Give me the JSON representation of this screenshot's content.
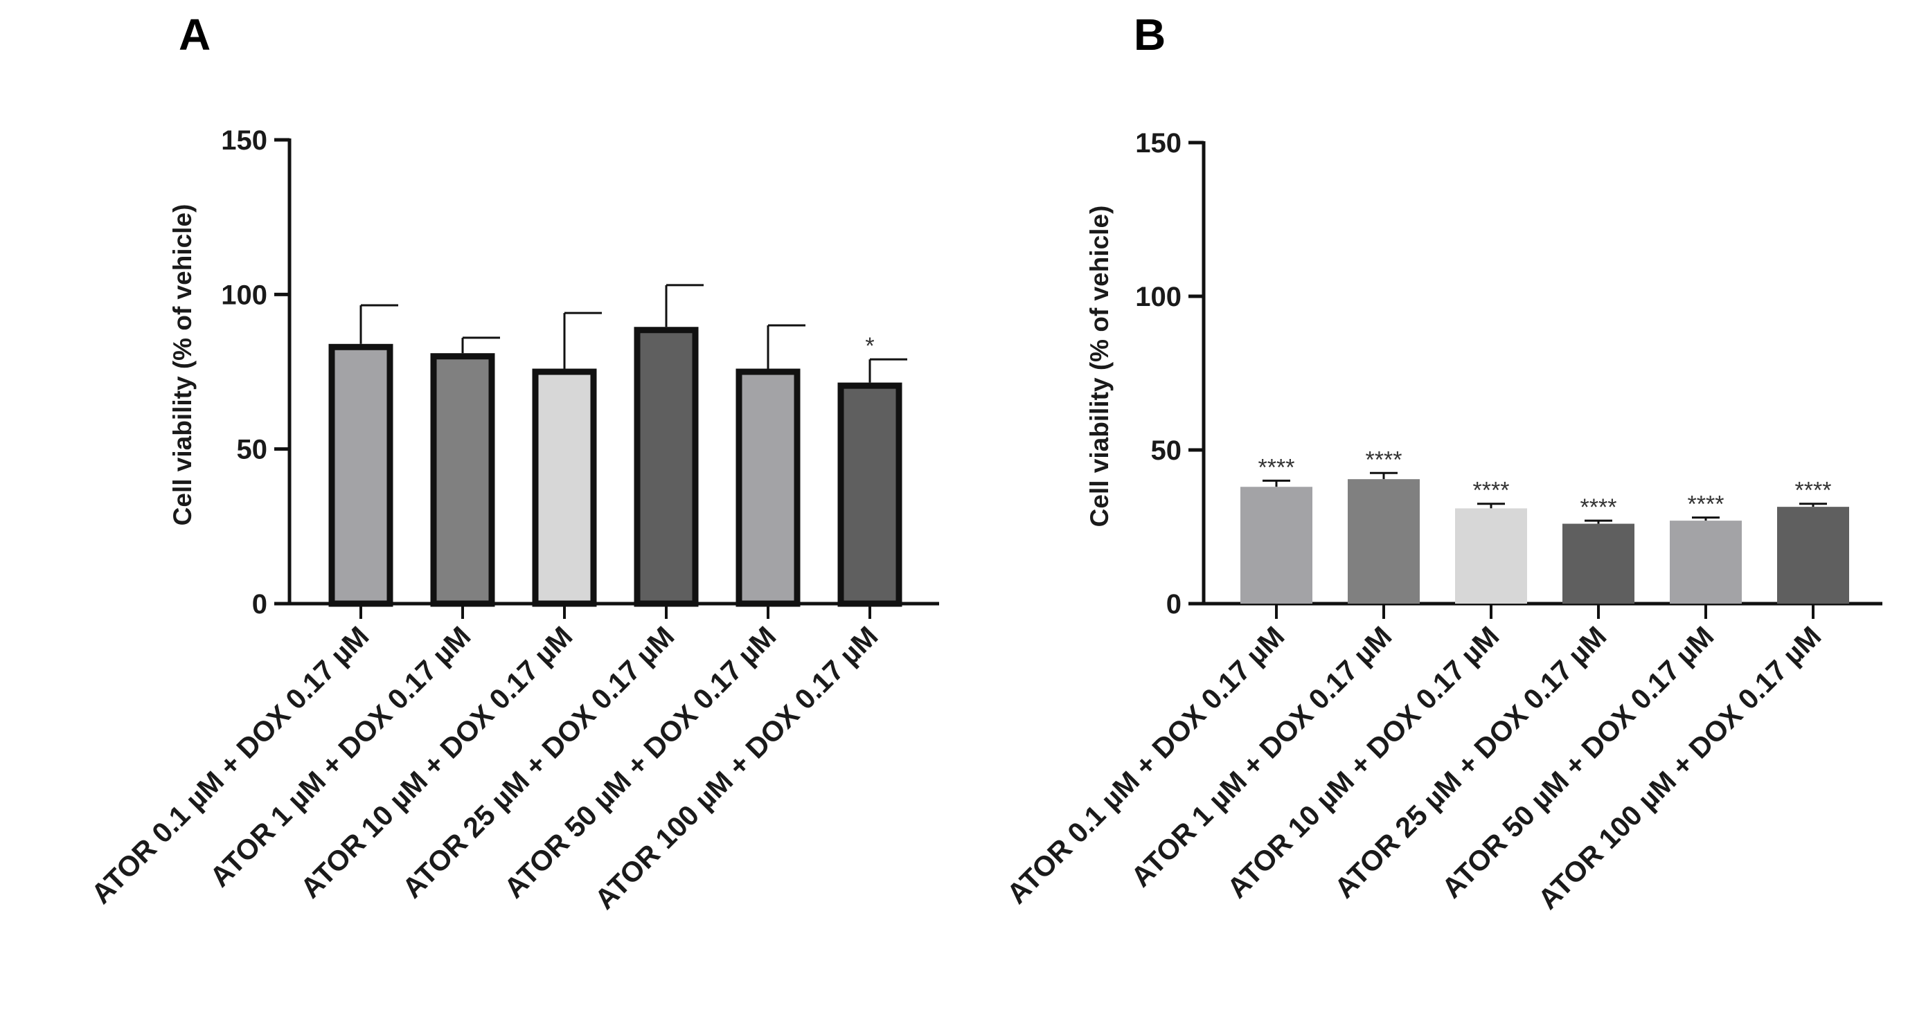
{
  "chart_data": [
    {
      "panel": "A",
      "type": "bar",
      "title": "",
      "ylabel": "Cell viability (%  of vehicle)",
      "xlabel": "",
      "ylim": [
        0,
        150
      ],
      "yticks": [
        0,
        50,
        100,
        150
      ],
      "style": "outlined",
      "categories": [
        "ATOR 0.1 µM + DOX 0.17 µM",
        "ATOR 1 µM + DOX 0.17 µM",
        "ATOR 10 µM + DOX 0.17 µM",
        "ATOR 25 µM + DOX 0.17 µM",
        "ATOR 50 µM + DOX 0.17 µM",
        "ATOR 100 µM + DOX 0.17 µM"
      ],
      "values": [
        84,
        81,
        76,
        89.5,
        76,
        71.5
      ],
      "errors": [
        12.5,
        5,
        18,
        13.5,
        14,
        7.5
      ],
      "annotations": [
        "",
        "",
        "",
        "",
        "",
        "*"
      ],
      "colors": [
        "#a3a3a6",
        "#808080",
        "#d7d7d7",
        "#5f5f5f",
        "#a3a3a6",
        "#5f5f5f"
      ]
    },
    {
      "panel": "B",
      "type": "bar",
      "title": "",
      "ylabel": "Cell viability (%  of vehicle)",
      "xlabel": "",
      "ylim": [
        0,
        150
      ],
      "yticks": [
        0,
        50,
        100,
        150
      ],
      "style": "filled",
      "categories": [
        "ATOR 0.1 µM + DOX 0.17 µM",
        "ATOR 1 µM + DOX 0.17 µM",
        "ATOR 10 µM + DOX 0.17 µM",
        "ATOR 25 µM + DOX 0.17 µM",
        "ATOR 50 µM + DOX 0.17 µM",
        "ATOR 100 µM + DOX 0.17 µM"
      ],
      "values": [
        38,
        40.5,
        31,
        26,
        27,
        31.5
      ],
      "errors": [
        2,
        2,
        1.5,
        1,
        1,
        1
      ],
      "annotations": [
        "****",
        "****",
        "****",
        "****",
        "****",
        "****"
      ],
      "colors": [
        "#a3a3a6",
        "#808080",
        "#d7d7d7",
        "#5f5f5f",
        "#a3a3a6",
        "#5f5f5f"
      ]
    }
  ]
}
